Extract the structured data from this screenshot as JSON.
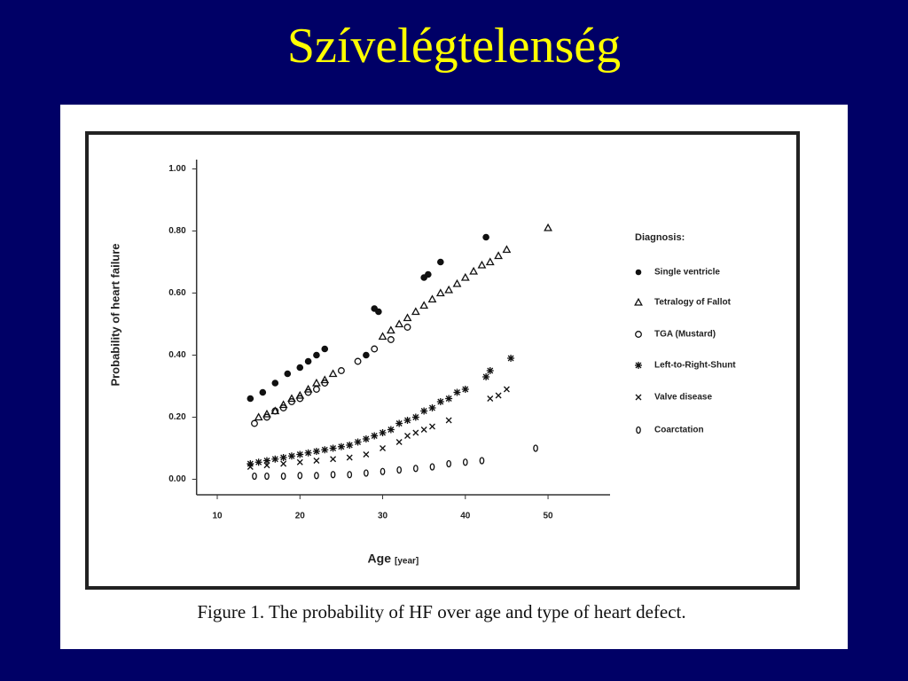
{
  "title": "Szívelégtelenség",
  "caption": "Figure 1. The probability of HF over age and type of heart defect.",
  "chart_data": {
    "type": "scatter",
    "x_label": "Age",
    "x_label_unit": "[year]",
    "y_label": "Probability of heart failure",
    "legend_title": "Diagnosis:",
    "legend": "right",
    "xlim": [
      7.5,
      57.5
    ],
    "ylim": [
      -0.05,
      1.03
    ],
    "xticks": [
      10,
      20,
      30,
      40,
      50
    ],
    "yticks": [
      {
        "value": 0,
        "label": "0.00"
      },
      {
        "value": 0.2,
        "label": "0.20"
      },
      {
        "value": 0.4,
        "label": "0.40"
      },
      {
        "value": 0.6,
        "label": "0.60"
      },
      {
        "value": 0.8,
        "label": "0.80"
      },
      {
        "value": 1,
        "label": "1.00"
      }
    ],
    "series": [
      {
        "name": "Single ventricle",
        "marker": "filled-circle",
        "color": "#111111",
        "x": [
          14,
          15.5,
          17,
          18.5,
          20,
          21,
          22,
          23,
          28,
          29,
          29.5,
          35,
          35.5,
          37,
          42.5
        ],
        "values": [
          0.26,
          0.28,
          0.31,
          0.34,
          0.36,
          0.38,
          0.4,
          0.42,
          0.4,
          0.55,
          0.54,
          0.65,
          0.66,
          0.7,
          0.78
        ]
      },
      {
        "name": "Tetralogy of Fallot",
        "marker": "triangle",
        "color": "#111111",
        "x": [
          15,
          16,
          17,
          18,
          19,
          20,
          21,
          22,
          23,
          24,
          30,
          31,
          32,
          33,
          34,
          35,
          36,
          37,
          38,
          39,
          40,
          41,
          42,
          43,
          44,
          45,
          50
        ],
        "values": [
          0.2,
          0.21,
          0.22,
          0.24,
          0.26,
          0.27,
          0.29,
          0.31,
          0.32,
          0.34,
          0.46,
          0.48,
          0.5,
          0.52,
          0.54,
          0.56,
          0.58,
          0.6,
          0.61,
          0.63,
          0.65,
          0.67,
          0.69,
          0.7,
          0.72,
          0.74,
          0.81
        ]
      },
      {
        "name": "TGA (Mustard)",
        "marker": "open-circle",
        "color": "#111111",
        "x": [
          14.5,
          16,
          17,
          18,
          19,
          20,
          21,
          22,
          23,
          25,
          27,
          29,
          31,
          33
        ],
        "values": [
          0.18,
          0.2,
          0.22,
          0.23,
          0.25,
          0.26,
          0.28,
          0.29,
          0.31,
          0.35,
          0.38,
          0.42,
          0.45,
          0.49
        ]
      },
      {
        "name": "Left-to-Right-Shunt",
        "marker": "star",
        "color": "#111111",
        "x": [
          14,
          15,
          16,
          17,
          18,
          19,
          20,
          21,
          22,
          23,
          24,
          25,
          26,
          27,
          28,
          29,
          30,
          31,
          32,
          33,
          34,
          35,
          36,
          37,
          38,
          39,
          40,
          42.5,
          43,
          45.5
        ],
        "values": [
          0.05,
          0.055,
          0.06,
          0.065,
          0.07,
          0.075,
          0.08,
          0.085,
          0.09,
          0.095,
          0.1,
          0.105,
          0.11,
          0.12,
          0.13,
          0.14,
          0.15,
          0.16,
          0.18,
          0.19,
          0.2,
          0.22,
          0.23,
          0.25,
          0.26,
          0.28,
          0.29,
          0.33,
          0.35,
          0.39
        ]
      },
      {
        "name": "Valve disease",
        "marker": "cross",
        "color": "#111111",
        "x": [
          14,
          16,
          18,
          20,
          22,
          24,
          26,
          28,
          30,
          32,
          33,
          34,
          35,
          36,
          38,
          43,
          44,
          45
        ],
        "values": [
          0.04,
          0.045,
          0.05,
          0.055,
          0.06,
          0.065,
          0.07,
          0.08,
          0.1,
          0.12,
          0.14,
          0.15,
          0.16,
          0.17,
          0.19,
          0.26,
          0.27,
          0.29
        ]
      },
      {
        "name": "Coarctation",
        "marker": "oval",
        "color": "#111111",
        "x": [
          14.5,
          16,
          18,
          20,
          22,
          24,
          26,
          28,
          30,
          32,
          34,
          36,
          38,
          40,
          42,
          48.5
        ],
        "values": [
          0.01,
          0.01,
          0.01,
          0.012,
          0.012,
          0.015,
          0.015,
          0.02,
          0.025,
          0.03,
          0.035,
          0.04,
          0.05,
          0.055,
          0.06,
          0.1
        ]
      }
    ]
  }
}
